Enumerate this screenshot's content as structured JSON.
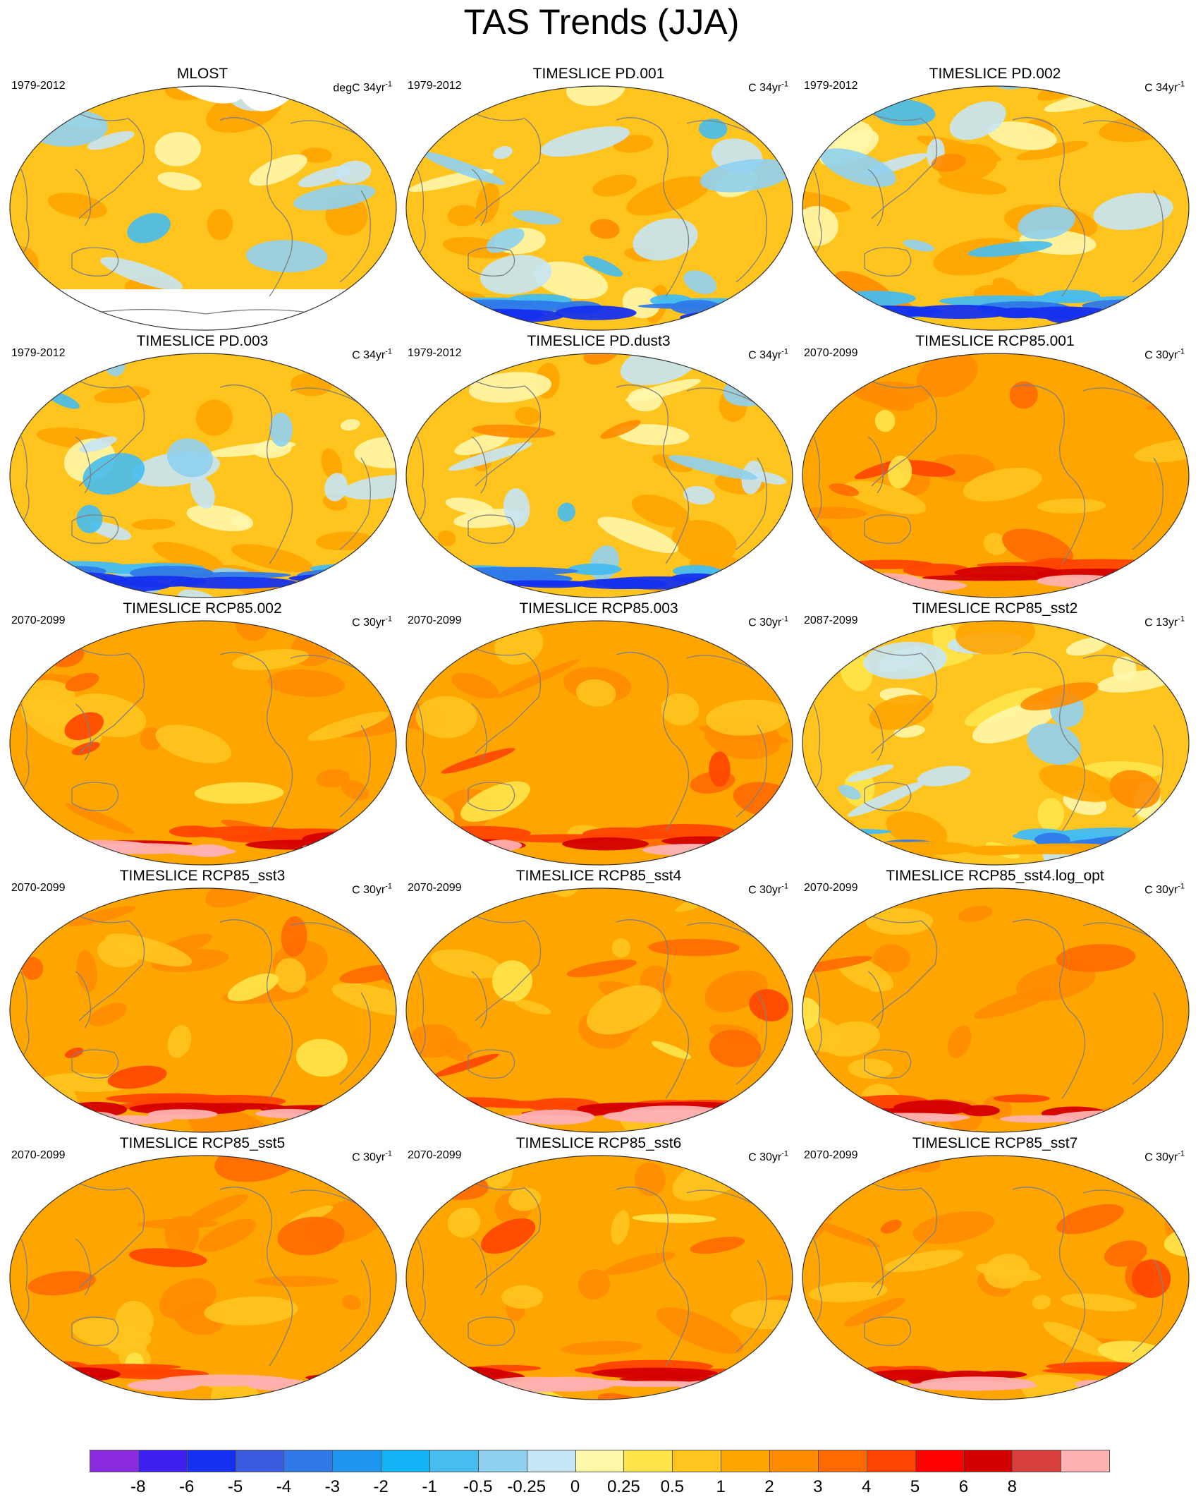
{
  "title": "TAS Trends (JJA)",
  "panels": [
    {
      "title": "MLOST",
      "period": "1979-2012",
      "units": "degC",
      "length": "34",
      "style": "obs"
    },
    {
      "title": "TIMESLICE PD.001",
      "period": "1979-2012",
      "units": "C",
      "length": "34",
      "style": "pd"
    },
    {
      "title": "TIMESLICE PD.002",
      "period": "1979-2012",
      "units": "C",
      "length": "34",
      "style": "pd"
    },
    {
      "title": "TIMESLICE PD.003",
      "period": "1979-2012",
      "units": "C",
      "length": "34",
      "style": "pd"
    },
    {
      "title": "TIMESLICE PD.dust3",
      "period": "1979-2012",
      "units": "C",
      "length": "34",
      "style": "pd"
    },
    {
      "title": "TIMESLICE RCP85.001",
      "period": "2070-2099",
      "units": "C",
      "length": "30",
      "style": "rcp"
    },
    {
      "title": "TIMESLICE RCP85.002",
      "period": "2070-2099",
      "units": "C",
      "length": "30",
      "style": "rcp"
    },
    {
      "title": "TIMESLICE RCP85.003",
      "period": "2070-2099",
      "units": "C",
      "length": "30",
      "style": "rcp"
    },
    {
      "title": "TIMESLICE RCP85_sst2",
      "period": "2087-2099",
      "units": "C",
      "length": "13",
      "style": "mixed"
    },
    {
      "title": "TIMESLICE RCP85_sst3",
      "period": "2070-2099",
      "units": "C",
      "length": "30",
      "style": "rcp"
    },
    {
      "title": "TIMESLICE RCP85_sst4",
      "period": "2070-2099",
      "units": "C",
      "length": "30",
      "style": "rcp"
    },
    {
      "title": "TIMESLICE RCP85_sst4.log_opt",
      "period": "2070-2099",
      "units": "C",
      "length": "30",
      "style": "rcp"
    },
    {
      "title": "TIMESLICE RCP85_sst5",
      "period": "2070-2099",
      "units": "C",
      "length": "30",
      "style": "rcp"
    },
    {
      "title": "TIMESLICE RCP85_sst6",
      "period": "2070-2099",
      "units": "C",
      "length": "30",
      "style": "rcp"
    },
    {
      "title": "TIMESLICE RCP85_sst7",
      "period": "2070-2099",
      "units": "C",
      "length": "30",
      "style": "rcp"
    }
  ],
  "colorbar": {
    "colors": [
      "#8a2be2",
      "#3d1ff0",
      "#1530ee",
      "#3a5ae0",
      "#2f7ae8",
      "#1e96f0",
      "#12b4f5",
      "#46bcef",
      "#8fd0f0",
      "#c5e6f5",
      "#fff7a8",
      "#ffe54a",
      "#ffc41e",
      "#ffa500",
      "#ff8c00",
      "#ff6a00",
      "#ff4500",
      "#ff0000",
      "#d40000",
      "#d84040",
      "#ffb0b0"
    ],
    "labels": [
      "-8",
      "-6",
      "-5",
      "-4",
      "-3",
      "-2",
      "-1",
      "-0.5",
      "-0.25",
      "0",
      "0.25",
      "0.5",
      "1",
      "2",
      "3",
      "4",
      "5",
      "6",
      "8"
    ]
  }
}
